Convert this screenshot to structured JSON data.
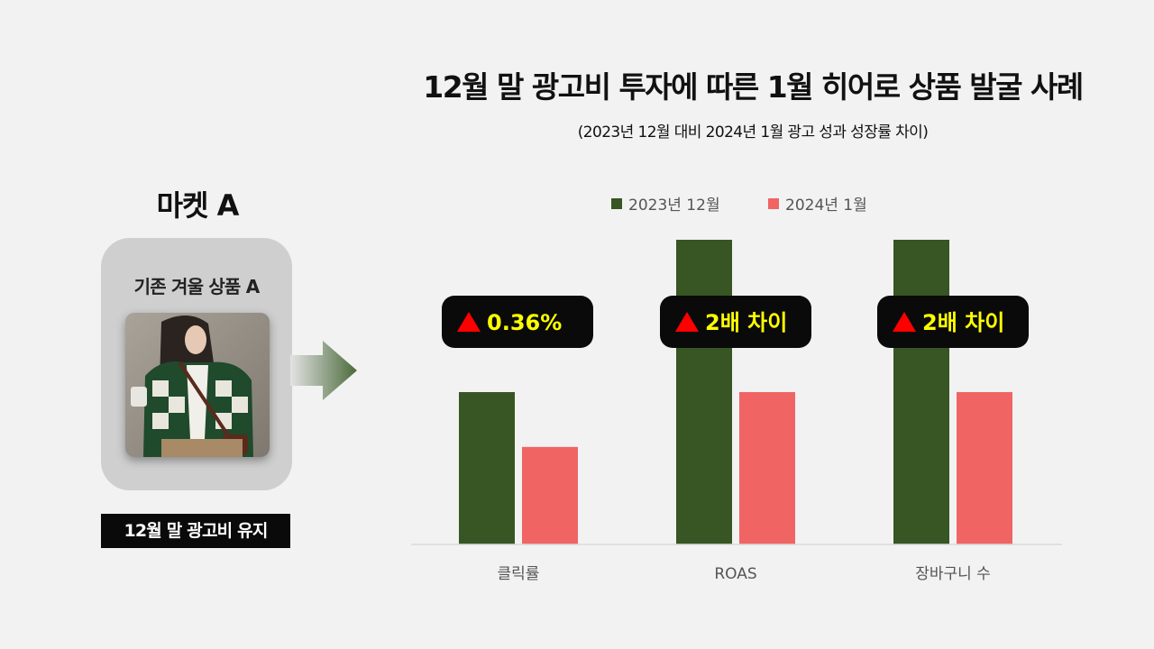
{
  "title": "12월 말 광고비 투자에 따른 1월 히어로 상품 발굴 사례",
  "subtitle": "(2023년 12월 대비 2024년 1월 광고 성과 성장률 차이)",
  "market": {
    "name": "마켓 A",
    "product_label": "기존 겨울 상품 A",
    "footer": "12월 말 광고비 유지"
  },
  "colors": {
    "series_2023": "#375623",
    "series_2024": "#f06464",
    "badge_bg": "#0a0a0a",
    "badge_text": "#ffff00",
    "triangle": "#ff0000"
  },
  "chart_data": {
    "type": "bar",
    "title": "",
    "xlabel": "",
    "ylabel": "",
    "categories": [
      "클릭률",
      "ROAS",
      "장바구니 수"
    ],
    "series": [
      {
        "name": "2023년 12월",
        "values": [
          100,
          200,
          200
        ]
      },
      {
        "name": "2024년 1월",
        "values": [
          64,
          100,
          100
        ]
      }
    ],
    "ylim": [
      0,
      200
    ],
    "grid": false,
    "legend": "top",
    "annotations": [
      "▲ 0.36%",
      "▲ 2배 차이",
      "▲ 2배 차이"
    ]
  }
}
